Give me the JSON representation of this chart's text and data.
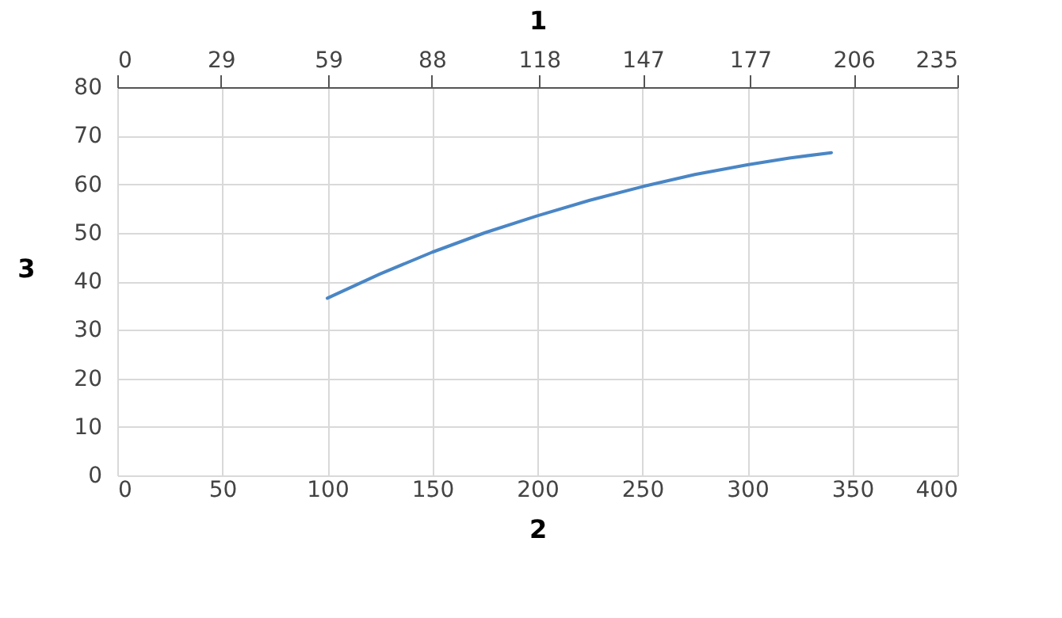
{
  "chart_data": {
    "type": "line",
    "x2label": "1",
    "xlabel": "2",
    "ylabel": "3",
    "x": [
      100,
      125,
      150,
      175,
      200,
      225,
      250,
      275,
      300,
      320,
      340
    ],
    "series": [
      {
        "color": "#4a86c5",
        "values": [
          36.5,
          41.5,
          46,
          50,
          53.5,
          56.7,
          59.5,
          62,
          64,
          65.4,
          66.5
        ]
      }
    ],
    "xlim": [
      0,
      400
    ],
    "xticks": [
      0,
      50,
      100,
      150,
      200,
      250,
      300,
      350,
      400
    ],
    "x2lim": [
      0,
      235
    ],
    "x2ticks": [
      0,
      29,
      59,
      88,
      118,
      147,
      177,
      206,
      235
    ],
    "ylim": [
      0,
      80
    ],
    "yticks": [
      0,
      10,
      20,
      30,
      40,
      50,
      60,
      70,
      80
    ],
    "grid": true,
    "line_style": "solid",
    "marker": "none"
  }
}
